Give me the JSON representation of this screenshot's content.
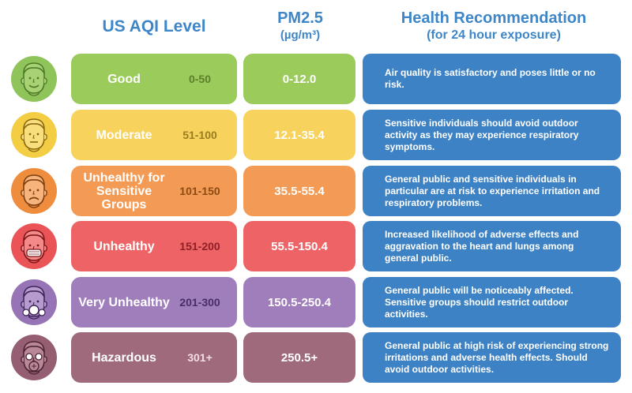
{
  "headers": {
    "aqi_level": "US AQI Level",
    "pm_title": "PM2.5",
    "pm_unit": "(µg/m³)",
    "health_title": "Health Recommendation",
    "health_sub": "(for 24 hour exposure)"
  },
  "rows": [
    {
      "level": "Good",
      "range": "0-50",
      "pm": "0-12.0",
      "recommendation": "Air quality is satisfactory and poses little or no risk.",
      "icon": "happy-face-icon",
      "colors": {
        "level_bg": "#9bcb5b",
        "range_text": "#5b7f2c",
        "pm_bg": "#9bcb5b",
        "face_bg": "#8fc45a",
        "face_skin": "#a8d173",
        "face_line": "#4f7a2a"
      }
    },
    {
      "level": "Moderate",
      "range": "51-100",
      "pm": "12.1-35.4",
      "recommendation": "Sensitive individuals should avoid outdoor activity as they may experience respiratory symptoms.",
      "icon": "neutral-face-icon",
      "colors": {
        "level_bg": "#f7d25c",
        "range_text": "#9a7d1f",
        "pm_bg": "#f7d25c",
        "face_bg": "#f3cd44",
        "face_skin": "#f9de7e",
        "face_line": "#8a6a10"
      }
    },
    {
      "level": "Unhealthy for Sensitive Groups",
      "range": "101-150",
      "pm": "35.5-55.4",
      "recommendation": "General public and sensitive individuals in particular are at risk to experience irritation and respiratory problems.",
      "icon": "worried-face-icon",
      "colors": {
        "level_bg": "#f39b55",
        "range_text": "#8c4a14",
        "pm_bg": "#f39b55",
        "face_bg": "#ef8d3f",
        "face_skin": "#f7b37c",
        "face_line": "#7e3e0e"
      }
    },
    {
      "level": "Unhealthy",
      "range": "151-200",
      "pm": "55.5-150.4",
      "recommendation": "Increased likelihood of adverse effects and aggravation to the heart and lungs among general public.",
      "icon": "face-mask-icon",
      "colors": {
        "level_bg": "#ee6466",
        "range_text": "#8e1f24",
        "pm_bg": "#ee6466",
        "face_bg": "#ea5457",
        "face_skin": "#f4898a",
        "face_line": "#7d1619"
      }
    },
    {
      "level": "Very Unhealthy",
      "range": "201-300",
      "pm": "150.5-250.4",
      "recommendation": "General public will be noticeably affected. Sensitive groups should restrict outdoor activities.",
      "icon": "respirator-icon",
      "colors": {
        "level_bg": "#a07ebc",
        "range_text": "#4a2c66",
        "pm_bg": "#a07ebc",
        "face_bg": "#9674b6",
        "face_skin": "#b79bd0",
        "face_line": "#3f2658"
      }
    },
    {
      "level": "Hazardous",
      "range": "301+",
      "pm": "250.5+",
      "recommendation": "General public at high risk of experiencing strong irritations and adverse health effects. Should avoid outdoor activities.",
      "icon": "gas-mask-icon",
      "colors": {
        "level_bg": "#a06a7d",
        "range_text": "#f3dde4",
        "pm_bg": "#a06a7d",
        "face_bg": "#955e72",
        "face_skin": "#b98898",
        "face_line": "#4d2632"
      }
    }
  ]
}
